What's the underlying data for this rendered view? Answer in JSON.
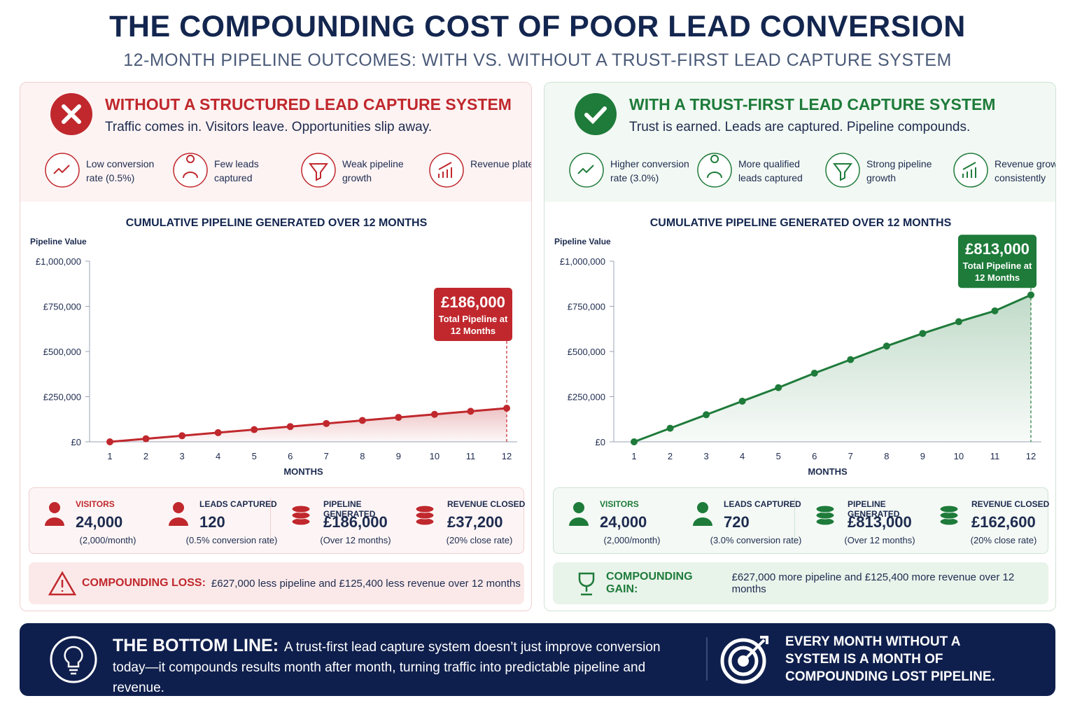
{
  "header": {
    "title": "THE COMPOUNDING COST OF POOR LEAD CONVERSION",
    "subtitle": "12-MONTH PIPELINE OUTCOMES: WITH VS. WITHOUT A TRUST-FIRST LEAD CAPTURE SYSTEM"
  },
  "panels": [
    {
      "heading": "WITHOUT A STRUCTURED LEAD CAPTURE SYSTEM",
      "tagline": "Traffic comes in. Visitors leave. Opportunities slip away.",
      "color": "#c0282d",
      "features": [
        "Low conversion rate (0.5%)",
        "Few leads captured",
        "Weak pipeline growth",
        "Revenue plateaus"
      ],
      "stats": [
        {
          "label": "VISITORS",
          "value": "24,000",
          "note": "(2,000/month)"
        },
        {
          "label": "LEADS CAPTURED",
          "value": "120",
          "note": "(0.5% conversion rate)"
        },
        {
          "label": "PIPELINE GENERATED",
          "value": "£186,000",
          "note": "(Over 12 months)"
        },
        {
          "label": "REVENUE CLOSED",
          "value": "£37,200",
          "note": "(20% close rate)"
        }
      ],
      "summary": {
        "label": "COMPOUNDING LOSS:",
        "text": "£627,000 less pipeline and £125,400 less revenue over 12 months"
      }
    },
    {
      "heading": "WITH A TRUST-FIRST LEAD CAPTURE SYSTEM",
      "tagline": "Trust is earned. Leads are captured. Pipeline compounds.",
      "color": "#1e7b3a",
      "features": [
        "Higher conversion rate (3.0%)",
        "More qualified leads captured",
        "Strong pipeline growth",
        "Revenue grows consistently"
      ],
      "stats": [
        {
          "label": "VISITORS",
          "value": "24,000",
          "note": "(2,000/month)"
        },
        {
          "label": "LEADS CAPTURED",
          "value": "720",
          "note": "(3.0% conversion rate)"
        },
        {
          "label": "PIPELINE GENERATED",
          "value": "£813,000",
          "note": "(Over 12 months)"
        },
        {
          "label": "REVENUE CLOSED",
          "value": "£162,600",
          "note": "(20% close rate)"
        }
      ],
      "summary": {
        "label": "COMPOUNDING GAIN:",
        "text": "£627,000 more pipeline and £125,400 more revenue over 12 months"
      }
    }
  ],
  "chart_data": [
    {
      "type": "line",
      "title": "CUMULATIVE PIPELINE GENERATED OVER 12 MONTHS",
      "y_label": "Pipeline Value",
      "x_label": "MONTHS",
      "categories": [
        "1",
        "2",
        "3",
        "4",
        "5",
        "6",
        "7",
        "8",
        "9",
        "10",
        "11",
        "12"
      ],
      "values": [
        0,
        16900,
        33800,
        50700,
        67600,
        84500,
        101500,
        118400,
        135300,
        152200,
        169100,
        186000
      ],
      "color": "#c0282d",
      "ylim": [
        0,
        1000000
      ],
      "yticks": [
        {
          "value": 0,
          "label": "£0"
        },
        {
          "value": 250000,
          "label": "£250,000"
        },
        {
          "value": 500000,
          "label": "£500,000"
        },
        {
          "value": 750000,
          "label": "£750,000"
        },
        {
          "value": 1000000,
          "label": "£1,000,000"
        }
      ],
      "callout": {
        "value": "£186,000",
        "text": "Total Pipeline at 12 Months"
      }
    },
    {
      "type": "line",
      "title": "CUMULATIVE PIPELINE GENERATED OVER 12 MONTHS",
      "y_label": "Pipeline Value",
      "x_label": "MONTHS",
      "categories": [
        "1",
        "2",
        "3",
        "4",
        "5",
        "6",
        "7",
        "8",
        "9",
        "10",
        "11",
        "12"
      ],
      "values": [
        0,
        75000,
        150000,
        225000,
        300000,
        380000,
        455000,
        530000,
        600000,
        665000,
        725000,
        813000
      ],
      "color": "#1e7b3a",
      "ylim": [
        0,
        1000000
      ],
      "yticks": [
        {
          "value": 0,
          "label": "£0"
        },
        {
          "value": 250000,
          "label": "£250,000"
        },
        {
          "value": 500000,
          "label": "£500,000"
        },
        {
          "value": 750000,
          "label": "£750,000"
        },
        {
          "value": 1000000,
          "label": "£1,000,000"
        }
      ],
      "callout": {
        "value": "£813,000",
        "text": "Total Pipeline at 12 Months"
      }
    }
  ],
  "bottom": {
    "label": "THE BOTTOM LINE:",
    "text": "A trust-first lead capture system doesn’t just improve conversion today—it compounds results month after month, turning traffic into predictable pipeline and revenue.",
    "callout": "EVERY MONTH WITHOUT A SYSTEM IS A MONTH OF COMPOUNDING LOST PIPELINE."
  }
}
